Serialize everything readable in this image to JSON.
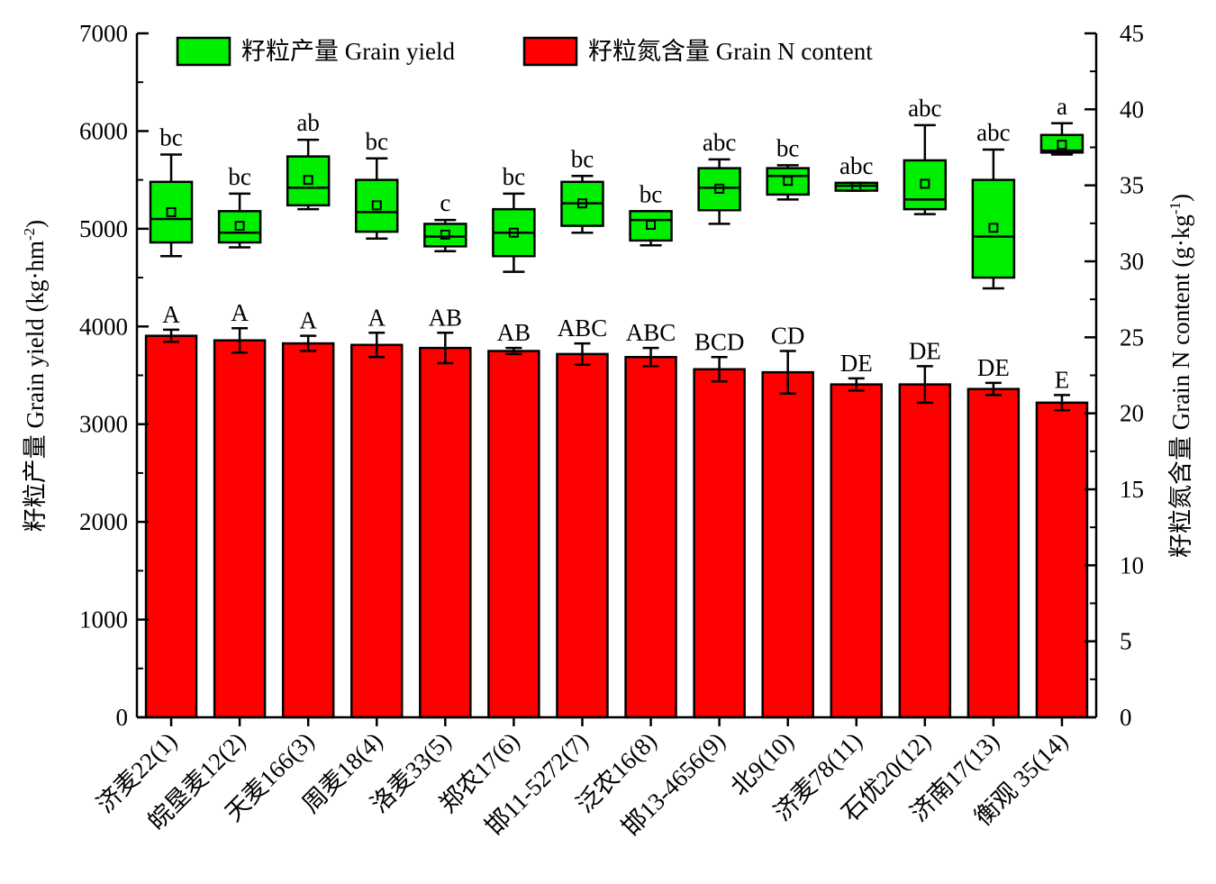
{
  "chart_data": {
    "type": "bar",
    "categories": [
      "济麦22(1)",
      "皖垦麦12(2)",
      "天麦166(3)",
      "周麦18(4)",
      "洛麦33(5)",
      "郑农17(6)",
      "邯11-5272(7)",
      "泛农16(8)",
      "邯13-4656(9)",
      "北9(10)",
      "济麦78(11)",
      "石优20(12)",
      "济南17(13)",
      "衡观 35(14)"
    ],
    "left_axis": {
      "label": "籽粒产量 Grain yield (kg·hm",
      "unit_sup": "-2",
      "unit_close": ")",
      "ylim": [
        0,
        7000
      ],
      "ticks": [
        "0",
        "1000",
        "2000",
        "3000",
        "4000",
        "5000",
        "6000",
        "7000"
      ]
    },
    "right_axis": {
      "label": "籽粒氮含量 Grain N content (g·kg",
      "unit_sup": "-1",
      "unit_close": ")",
      "ylim": [
        0,
        45
      ],
      "ticks": [
        "0",
        "5",
        "10",
        "15",
        "20",
        "25",
        "30",
        "35",
        "40",
        "45"
      ]
    },
    "legend": {
      "position": "top-left",
      "items": [
        {
          "label": "籽粒产量 Grain yield",
          "color": "#00ee00"
        },
        {
          "label": "籽粒氮含量 Grain N content",
          "color": "#ff0000"
        }
      ]
    },
    "series": [
      {
        "name": "籽粒氮含量 Grain N content",
        "type": "bar",
        "axis": "right",
        "color": "#ff0000",
        "values": [
          25.1,
          24.8,
          24.6,
          24.5,
          24.3,
          24.1,
          23.9,
          23.7,
          22.9,
          22.7,
          21.9,
          21.9,
          21.6,
          20.7
        ],
        "errors": [
          0.4,
          0.8,
          0.5,
          0.8,
          1.0,
          0.2,
          0.7,
          0.6,
          0.8,
          1.4,
          0.4,
          1.2,
          0.4,
          0.5
        ],
        "letters": [
          "A",
          "A",
          "A",
          "A",
          "AB",
          "AB",
          "ABC",
          "ABC",
          "BCD",
          "CD",
          "DE",
          "DE",
          "DE",
          "E"
        ]
      },
      {
        "name": "籽粒产量 Grain yield",
        "type": "box",
        "axis": "left",
        "color": "#00ee00",
        "stats": [
          {
            "whisker_low": 4720,
            "q1": 4860,
            "median": 5100,
            "q3": 5480,
            "whisker_high": 5760,
            "mean": 5170
          },
          {
            "whisker_low": 4810,
            "q1": 4860,
            "median": 4960,
            "q3": 5180,
            "whisker_high": 5360,
            "mean": 5030
          },
          {
            "whisker_low": 5200,
            "q1": 5240,
            "median": 5420,
            "q3": 5740,
            "whisker_high": 5910,
            "mean": 5500
          },
          {
            "whisker_low": 4900,
            "q1": 4970,
            "median": 5170,
            "q3": 5500,
            "whisker_high": 5720,
            "mean": 5240
          },
          {
            "whisker_low": 4770,
            "q1": 4820,
            "median": 4920,
            "q3": 5050,
            "whisker_high": 5090,
            "mean": 4940
          },
          {
            "whisker_low": 4560,
            "q1": 4720,
            "median": 4960,
            "q3": 5200,
            "whisker_high": 5360,
            "mean": 4960
          },
          {
            "whisker_low": 4960,
            "q1": 5030,
            "median": 5260,
            "q3": 5480,
            "whisker_high": 5540,
            "mean": 5260
          },
          {
            "whisker_low": 4830,
            "q1": 4880,
            "median": 5090,
            "q3": 5180,
            "whisker_high": 5180,
            "mean": 5040
          },
          {
            "whisker_low": 5050,
            "q1": 5190,
            "median": 5420,
            "q3": 5620,
            "whisker_high": 5710,
            "mean": 5410
          },
          {
            "whisker_low": 5300,
            "q1": 5350,
            "median": 5540,
            "q3": 5620,
            "whisker_high": 5650,
            "mean": 5490
          },
          {
            "whisker_low": 5390,
            "q1": 5390,
            "median": 5440,
            "q3": 5470,
            "whisker_high": 5470,
            "mean": 5430
          },
          {
            "whisker_low": 5150,
            "q1": 5200,
            "median": 5300,
            "q3": 5700,
            "whisker_high": 6060,
            "mean": 5460
          },
          {
            "whisker_low": 4390,
            "q1": 4500,
            "median": 4920,
            "q3": 5500,
            "whisker_high": 5810,
            "mean": 5010
          },
          {
            "whisker_low": 5760,
            "q1": 5780,
            "median": 5800,
            "q3": 5960,
            "whisker_high": 6080,
            "mean": 5860
          }
        ],
        "letters": [
          "bc",
          "bc",
          "ab",
          "bc",
          "c",
          "bc",
          "bc",
          "bc",
          "abc",
          "bc",
          "abc",
          "abc",
          "abc",
          "a"
        ]
      }
    ],
    "grid": false
  }
}
